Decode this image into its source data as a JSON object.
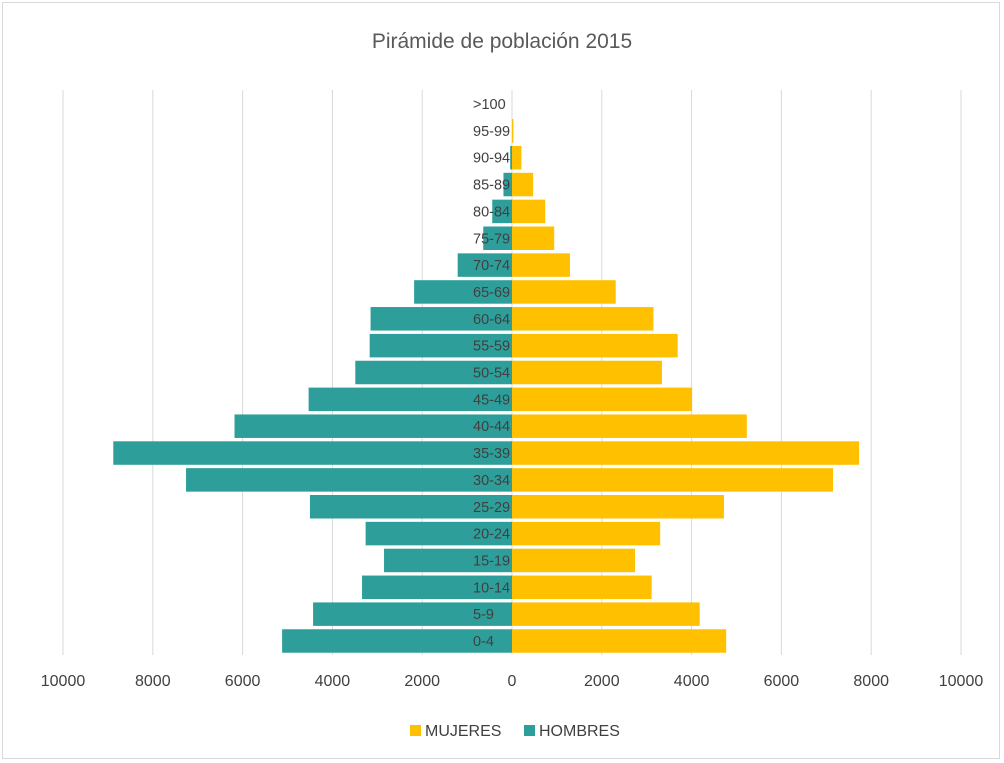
{
  "chart_data": {
    "type": "bar",
    "orientation": "horizontal",
    "title": "Pirámide de población 2015",
    "categories": [
      "0-4",
      "5-9",
      "10-14",
      "15-19",
      "20-24",
      "25-29",
      "30-34",
      "35-39",
      "40-44",
      "45-49",
      "50-54",
      "55-59",
      "60-64",
      "65-69",
      "70-74",
      "75-79",
      "80-84",
      "85-89",
      "90-94",
      "95-99",
      ">100"
    ],
    "series": [
      {
        "name": "MUJERES",
        "color": "#FFC000",
        "side": "right",
        "values": [
          4770,
          4180,
          3110,
          2740,
          3300,
          4720,
          7150,
          7730,
          5230,
          4010,
          3340,
          3690,
          3150,
          2310,
          1290,
          940,
          740,
          470,
          210,
          30,
          0
        ]
      },
      {
        "name": "HOMBRES",
        "color": "#2E9E9A",
        "side": "left",
        "values": [
          5120,
          4430,
          3340,
          2850,
          3260,
          4500,
          7260,
          8880,
          6180,
          4530,
          3490,
          3170,
          3150,
          2180,
          1210,
          640,
          440,
          190,
          40,
          0,
          0
        ]
      }
    ],
    "x_ticks": [
      "10000",
      "8000",
      "6000",
      "4000",
      "2000",
      "0",
      "2000",
      "4000",
      "6000",
      "8000",
      "10000"
    ],
    "xlim": [
      -10000,
      10000
    ],
    "grid": true,
    "legend_position": "bottom"
  }
}
